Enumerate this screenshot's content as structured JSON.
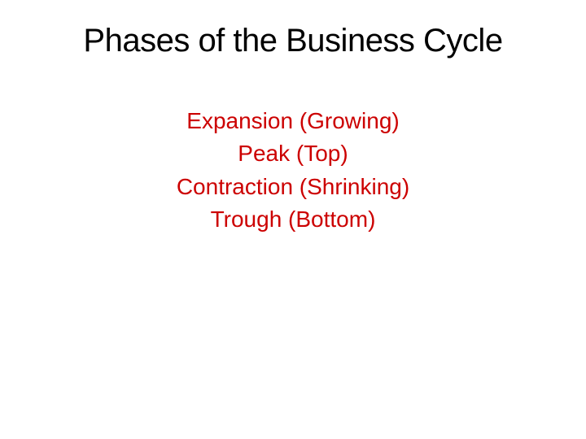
{
  "slide": {
    "title": "Phases of the Business Cycle",
    "title_fontsize": 40,
    "title_color": "#000000",
    "phases": [
      "Expansion (Growing)",
      "Peak (Top)",
      "Contraction (Shrinking)",
      "Trough (Bottom)"
    ],
    "phase_fontsize": 28,
    "phase_color": "#cc0000",
    "background_color": "#ffffff"
  }
}
